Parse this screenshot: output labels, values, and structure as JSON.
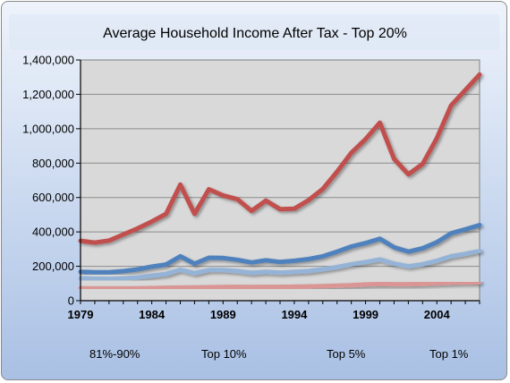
{
  "chart_data": {
    "type": "line",
    "title": "Average Household Income After Tax - Top 20%",
    "xlabel": "",
    "ylabel": "",
    "xlim": [
      1979,
      2007
    ],
    "ylim": [
      0,
      1400000
    ],
    "x_ticks": [
      "1979",
      "1984",
      "1989",
      "1994",
      "1999",
      "2004"
    ],
    "y_ticks": [
      "0",
      "200,000",
      "400,000",
      "600,000",
      "800,000",
      "1,000,000",
      "1,200,000",
      "1,400,000"
    ],
    "grid": true,
    "legend": "bottom",
    "x": [
      1979,
      1980,
      1981,
      1982,
      1983,
      1984,
      1985,
      1986,
      1987,
      1988,
      1989,
      1990,
      1991,
      1992,
      1993,
      1994,
      1995,
      1996,
      1997,
      1998,
      1999,
      2000,
      2001,
      2002,
      2003,
      2004,
      2005,
      2006,
      2007
    ],
    "series": [
      {
        "name": "81%-90%",
        "color": "#d99694",
        "values": [
          72000,
          71000,
          71000,
          71000,
          72000,
          73000,
          75000,
          76000,
          77000,
          78000,
          79000,
          80000,
          79000,
          80000,
          80000,
          81000,
          83000,
          85000,
          87000,
          90000,
          94000,
          97000,
          96000,
          96000,
          98000,
          101000,
          104000,
          106000,
          107000
        ]
      },
      {
        "name": "Top 10%",
        "color": "#95b3d7",
        "values": [
          130000,
          128000,
          127000,
          130000,
          135000,
          145000,
          155000,
          180000,
          160000,
          178000,
          178000,
          172000,
          162000,
          168000,
          163000,
          167000,
          172000,
          182000,
          195000,
          212000,
          225000,
          240000,
          215000,
          200000,
          212000,
          232000,
          258000,
          272000,
          290000
        ]
      },
      {
        "name": "Top 5%",
        "color": "#4f81bd",
        "values": [
          168000,
          165000,
          165000,
          172000,
          182000,
          198000,
          210000,
          258000,
          215000,
          250000,
          248000,
          238000,
          222000,
          235000,
          225000,
          232000,
          242000,
          258000,
          285000,
          315000,
          335000,
          360000,
          310000,
          285000,
          305000,
          340000,
          392000,
          415000,
          440000
        ]
      },
      {
        "name": "Top 1%",
        "color": "#c0504d",
        "values": [
          348000,
          338000,
          350000,
          385000,
          420000,
          460000,
          505000,
          675000,
          505000,
          648000,
          612000,
          590000,
          522000,
          582000,
          532000,
          535000,
          585000,
          650000,
          750000,
          860000,
          940000,
          1035000,
          825000,
          735000,
          795000,
          945000,
          1135000,
          1225000,
          1315000
        ]
      }
    ]
  }
}
